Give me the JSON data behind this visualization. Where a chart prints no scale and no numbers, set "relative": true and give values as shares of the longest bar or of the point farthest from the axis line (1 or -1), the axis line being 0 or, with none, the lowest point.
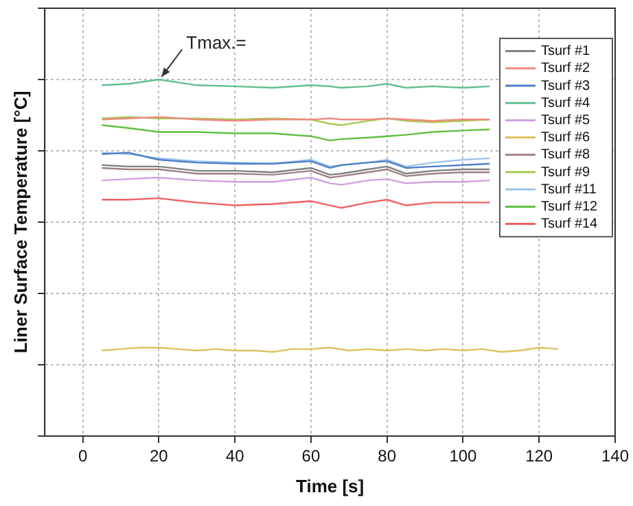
{
  "chart_data": {
    "type": "line",
    "xlabel": "Time [s]",
    "ylabel": "Liner Surface Temperature [°C]",
    "relative": true,
    "xlim": [
      -10,
      140
    ],
    "xticks": [
      0,
      20,
      40,
      60,
      80,
      100,
      120,
      140
    ],
    "grid": true,
    "legend": "top right",
    "tick_labels": "x",
    "marker": "none",
    "line_style": "solid",
    "x": [
      5,
      12,
      20,
      30,
      40,
      50,
      60,
      65,
      68,
      75,
      80,
      85,
      92,
      100,
      107
    ],
    "annotations": [
      {
        "text": "Tmax.=",
        "x": 20,
        "y": 1.0
      }
    ],
    "series": [
      {
        "name": "Tsurf #1",
        "color": "#808080",
        "values": [
          0.76,
          0.756,
          0.756,
          0.744,
          0.744,
          0.74,
          0.752,
          0.733,
          0.736,
          0.748,
          0.756,
          0.736,
          0.744,
          0.748,
          0.748
        ]
      },
      {
        "name": "Tsurf #2",
        "color": "#f08a80",
        "values": [
          0.888,
          0.891,
          0.895,
          0.888,
          0.884,
          0.888,
          0.888,
          0.891,
          0.888,
          0.888,
          0.891,
          0.888,
          0.884,
          0.888,
          0.888
        ]
      },
      {
        "name": "Tsurf #3",
        "color": "#4f7fc8",
        "values": [
          0.791,
          0.795,
          0.775,
          0.767,
          0.764,
          0.764,
          0.771,
          0.752,
          0.76,
          0.767,
          0.771,
          0.752,
          0.756,
          0.76,
          0.764
        ]
      },
      {
        "name": "Tsurf #4",
        "color": "#5fbf8f",
        "values": [
          0.984,
          0.988,
          1.0,
          0.984,
          0.981,
          0.977,
          0.984,
          0.981,
          0.977,
          0.981,
          0.988,
          0.977,
          0.981,
          0.977,
          0.981
        ]
      },
      {
        "name": "Tsurf #5",
        "color": "#d0a0e0",
        "values": [
          0.717,
          0.721,
          0.725,
          0.717,
          0.713,
          0.713,
          0.725,
          0.709,
          0.705,
          0.717,
          0.721,
          0.709,
          0.713,
          0.713,
          0.717
        ]
      },
      {
        "name": "Tsurf #6",
        "color": "#e0c060",
        "x": [
          5,
          10,
          15,
          20,
          25,
          30,
          35,
          40,
          45,
          50,
          55,
          60,
          65,
          70,
          75,
          80,
          85,
          90,
          95,
          100,
          105,
          110,
          115,
          120,
          125
        ],
        "values": [
          0.24,
          0.244,
          0.248,
          0.248,
          0.244,
          0.24,
          0.244,
          0.24,
          0.24,
          0.236,
          0.244,
          0.244,
          0.248,
          0.24,
          0.244,
          0.24,
          0.244,
          0.24,
          0.244,
          0.24,
          0.244,
          0.236,
          0.24,
          0.248,
          0.244
        ]
      },
      {
        "name": "Tsurf #8",
        "color": "#a08080",
        "values": [
          0.752,
          0.748,
          0.748,
          0.736,
          0.736,
          0.733,
          0.744,
          0.725,
          0.729,
          0.74,
          0.748,
          0.729,
          0.736,
          0.74,
          0.74
        ]
      },
      {
        "name": "Tsurf #9",
        "color": "#a8c850",
        "values": [
          0.891,
          0.895,
          0.891,
          0.891,
          0.888,
          0.891,
          0.888,
          0.876,
          0.872,
          0.884,
          0.891,
          0.884,
          0.88,
          0.884,
          0.888
        ]
      },
      {
        "name": "Tsurf #11",
        "color": "#9cc4ec",
        "values": [
          0.795,
          0.791,
          0.779,
          0.771,
          0.767,
          0.764,
          0.775,
          0.756,
          0.76,
          0.767,
          0.775,
          0.756,
          0.767,
          0.775,
          0.779
        ]
      },
      {
        "name": "Tsurf #12",
        "color": "#60c040",
        "values": [
          0.872,
          0.864,
          0.853,
          0.853,
          0.849,
          0.849,
          0.841,
          0.829,
          0.833,
          0.837,
          0.841,
          0.845,
          0.853,
          0.857,
          0.86
        ]
      },
      {
        "name": "Tsurf #14",
        "color": "#f06060",
        "values": [
          0.663,
          0.663,
          0.667,
          0.655,
          0.647,
          0.651,
          0.659,
          0.647,
          0.64,
          0.655,
          0.663,
          0.647,
          0.655,
          0.655,
          0.655
        ]
      }
    ]
  }
}
